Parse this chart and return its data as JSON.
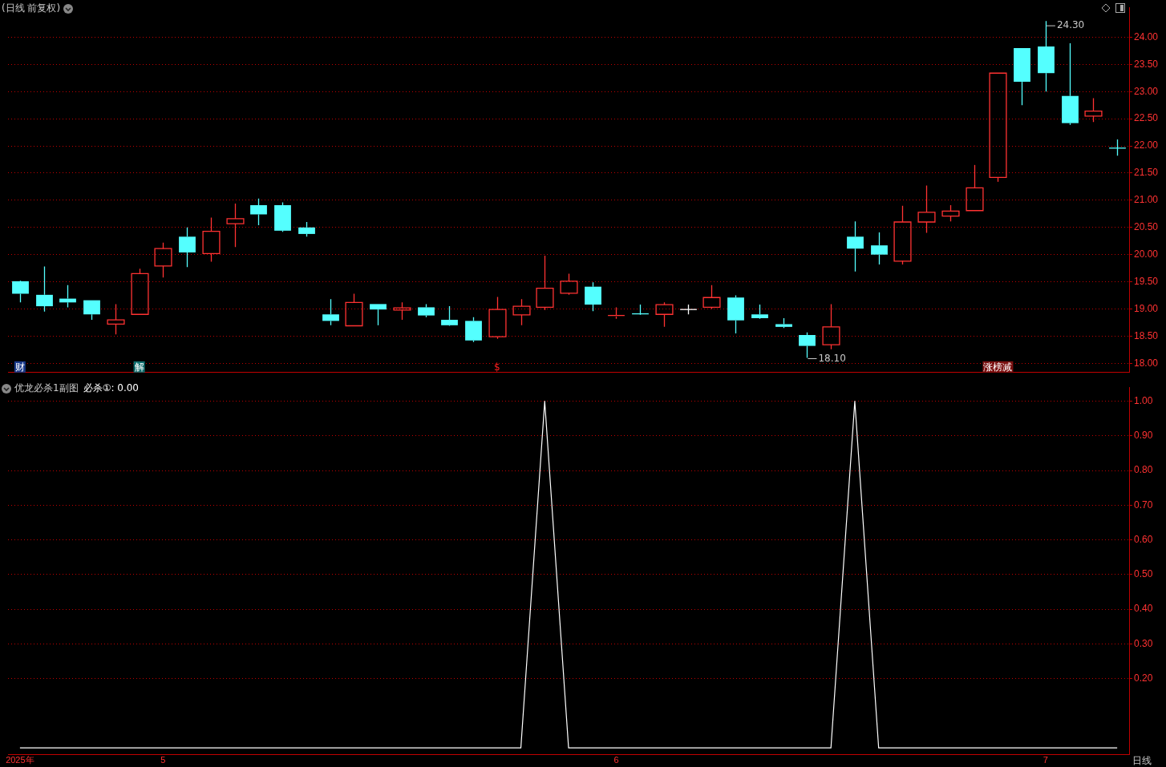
{
  "chart_data": [
    {
      "type": "candlestick",
      "title": "(日线 前复权)",
      "categories": [
        null,
        null,
        null,
        null,
        null,
        null,
        null,
        null,
        null,
        null,
        null,
        null,
        null,
        null,
        null,
        null,
        null,
        null,
        null,
        null,
        null,
        null,
        null,
        null,
        null,
        null,
        null,
        null,
        null,
        null,
        null,
        null,
        null,
        null,
        null,
        null,
        null,
        null,
        null,
        null,
        null,
        null,
        null,
        null,
        null,
        null,
        null
      ],
      "ohlc": [
        [
          19.51,
          19.52,
          19.12,
          19.28
        ],
        [
          19.26,
          19.78,
          18.95,
          19.05
        ],
        [
          19.19,
          19.44,
          19.03,
          19.12
        ],
        [
          19.16,
          19.16,
          18.8,
          18.9
        ],
        [
          18.72,
          19.09,
          18.53,
          18.8
        ],
        [
          18.9,
          19.74,
          18.9,
          19.65
        ],
        [
          19.79,
          20.22,
          19.58,
          20.11
        ],
        [
          20.33,
          20.5,
          19.77,
          20.04
        ],
        [
          20.02,
          20.68,
          19.87,
          20.43
        ],
        [
          20.57,
          20.94,
          20.14,
          20.66
        ],
        [
          20.91,
          21.03,
          20.54,
          20.74
        ],
        [
          20.91,
          20.96,
          20.42,
          20.44
        ],
        [
          20.5,
          20.6,
          20.33,
          20.38
        ],
        [
          18.9,
          19.18,
          18.7,
          18.78
        ],
        [
          18.69,
          19.28,
          18.69,
          19.12
        ],
        [
          19.09,
          19.09,
          18.7,
          18.99
        ],
        [
          18.98,
          19.12,
          18.8,
          19.02
        ],
        [
          19.03,
          19.09,
          18.85,
          18.88
        ],
        [
          18.8,
          19.05,
          18.69,
          18.7
        ],
        [
          18.78,
          18.85,
          18.39,
          18.42
        ],
        [
          18.49,
          19.22,
          18.45,
          18.99
        ],
        [
          18.89,
          19.18,
          18.7,
          19.05
        ],
        [
          19.03,
          19.98,
          18.98,
          19.38
        ],
        [
          19.29,
          19.65,
          19.26,
          19.51
        ],
        [
          19.41,
          19.49,
          18.96,
          19.08
        ],
        [
          18.86,
          19.03,
          18.82,
          18.88
        ],
        [
          18.91,
          19.08,
          18.89,
          18.9
        ],
        [
          18.9,
          19.12,
          18.67,
          19.08
        ],
        [
          18.99,
          19.08,
          18.9,
          18.99
        ],
        [
          19.03,
          19.44,
          19.0,
          19.21
        ],
        [
          19.21,
          19.25,
          18.55,
          18.79
        ],
        [
          18.9,
          19.08,
          18.82,
          18.83
        ],
        [
          18.72,
          18.83,
          18.65,
          18.67
        ],
        [
          18.52,
          18.57,
          18.1,
          18.32
        ],
        [
          18.34,
          19.09,
          18.26,
          18.67
        ],
        [
          20.33,
          20.61,
          19.69,
          20.11
        ],
        [
          20.17,
          20.41,
          19.82,
          20.0
        ],
        [
          19.88,
          20.9,
          19.82,
          20.6
        ],
        [
          20.6,
          21.27,
          20.4,
          20.78
        ],
        [
          20.71,
          20.91,
          20.61,
          20.8
        ],
        [
          20.81,
          21.65,
          20.81,
          21.23
        ],
        [
          21.42,
          23.34,
          21.34,
          23.34
        ],
        [
          23.8,
          23.8,
          22.75,
          23.18
        ],
        [
          23.83,
          24.3,
          23.0,
          23.34
        ],
        [
          22.92,
          23.89,
          22.39,
          22.42
        ],
        [
          22.55,
          22.88,
          22.44,
          22.64
        ],
        [
          21.96,
          22.12,
          21.82,
          21.96
        ]
      ],
      "colors": [
        "#54ffff",
        "#54ffff",
        "#54ffff",
        "#54ffff",
        "#ff3232",
        "#ff3232",
        "#ff3232",
        "#54ffff",
        "#ff3232",
        "#ff3232",
        "#54ffff",
        "#54ffff",
        "#54ffff",
        "#54ffff",
        "#ff3232",
        "#54ffff",
        "#ff3232",
        "#54ffff",
        "#54ffff",
        "#54ffff",
        "#ff3232",
        "#ff3232",
        "#ff3232",
        "#ff3232",
        "#54ffff",
        "#ff3232",
        "#54ffff",
        "#ff3232",
        "#ffffff",
        "#ff3232",
        "#54ffff",
        "#54ffff",
        "#54ffff",
        "#54ffff",
        "#ff3232",
        "#54ffff",
        "#54ffff",
        "#ff3232",
        "#ff3232",
        "#ff3232",
        "#ff3232",
        "#ff3232",
        "#54ffff",
        "#54ffff",
        "#54ffff",
        "#ff3232",
        "#54ffff"
      ],
      "ylim": [
        17.83,
        24.55
      ],
      "yticks": [
        {
          "value": 18,
          "label": "18.00"
        },
        {
          "value": 18.5,
          "label": "18.50"
        },
        {
          "value": 19,
          "label": "19.00"
        },
        {
          "value": 19.5,
          "label": "19.50"
        },
        {
          "value": 20,
          "label": "20.00"
        },
        {
          "value": 20.5,
          "label": "20.50"
        },
        {
          "value": 21,
          "label": "21.00"
        },
        {
          "value": 21.5,
          "label": "21.50"
        },
        {
          "value": 22,
          "label": "22.00"
        },
        {
          "value": 22.5,
          "label": "22.50"
        },
        {
          "value": 23,
          "label": "23.00"
        },
        {
          "value": 23.5,
          "label": "23.50"
        },
        {
          "value": 24,
          "label": "24.00"
        }
      ],
      "grid": "y",
      "tick_labels": "y",
      "annotations": [
        "24.30",
        "18.10",
        "财",
        "解",
        "$",
        "涨榜减"
      ]
    },
    {
      "type": "line",
      "title": "优龙必杀1副图",
      "categories": [
        "2025年",
        null,
        null,
        null,
        null,
        null,
        "5",
        null,
        null,
        null,
        null,
        null,
        null,
        null,
        null,
        null,
        null,
        null,
        null,
        null,
        null,
        null,
        null,
        null,
        null,
        "6",
        null,
        null,
        null,
        null,
        null,
        null,
        null,
        null,
        null,
        null,
        null,
        null,
        null,
        null,
        null,
        null,
        null,
        "7",
        null,
        null,
        null
      ],
      "series": [
        {
          "name": "必杀①: 0.00",
          "color": "#ffffff",
          "values": [
            0,
            0,
            0,
            0,
            0,
            0,
            0,
            0,
            0,
            0,
            0,
            0,
            0,
            0,
            0,
            0,
            0,
            0,
            0,
            0,
            0,
            0,
            1,
            0,
            0,
            0,
            0,
            0,
            0,
            0,
            0,
            0,
            0,
            0,
            0,
            1,
            0,
            0,
            0,
            0,
            0,
            0,
            0,
            0,
            0,
            0,
            0
          ]
        }
      ],
      "ylim": [
        -0.02,
        1.04
      ],
      "yticks": [
        {
          "value": 0.2,
          "label": "0.20"
        },
        {
          "value": 0.3,
          "label": "0.30"
        },
        {
          "value": 0.4,
          "label": "0.40"
        },
        {
          "value": 0.5,
          "label": "0.50"
        },
        {
          "value": 0.6,
          "label": "0.60"
        },
        {
          "value": 0.7,
          "label": "0.70"
        },
        {
          "value": 0.8,
          "label": "0.80"
        },
        {
          "value": 0.9,
          "label": "0.90"
        },
        {
          "value": 1,
          "label": "1.00"
        }
      ],
      "grid": "y",
      "legend": "top left",
      "marker": "none",
      "annotations": [
        "日线"
      ]
    }
  ]
}
